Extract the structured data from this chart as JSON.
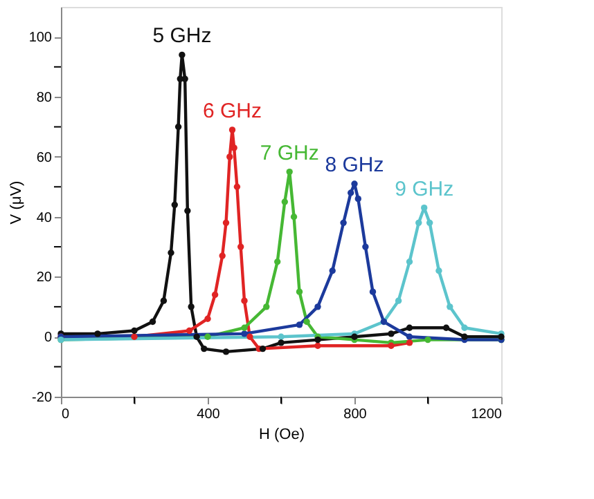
{
  "chart_data": {
    "type": "line",
    "xlabel": "H (Oe)",
    "ylabel": "V (μV)",
    "xlim": [
      0,
      1200
    ],
    "ylim": [
      -20,
      110
    ],
    "xticks": [
      0,
      {
        "value": 200,
        "label": null
      },
      400,
      {
        "value": 600,
        "label": null
      },
      800,
      {
        "value": 1000,
        "label": null
      },
      1200
    ],
    "yticks": [
      -20,
      {
        "value": -10,
        "label": null
      },
      0,
      {
        "value": 10,
        "label": null
      },
      20,
      {
        "value": 30,
        "label": null
      },
      40,
      {
        "value": 50,
        "label": null
      },
      60,
      {
        "value": 70,
        "label": null
      },
      80,
      {
        "value": 90,
        "label": null
      },
      100
    ],
    "grid": false,
    "legend": false,
    "marker": "circle",
    "line_style": "solid",
    "series": [
      {
        "name": "5 GHz",
        "color": "#111111",
        "x": [
          0,
          100,
          200,
          250,
          280,
          300,
          310,
          320,
          325,
          330,
          338,
          345,
          355,
          370,
          390,
          450,
          550,
          600,
          700,
          800,
          900,
          950,
          1050,
          1100,
          1200
        ],
        "values": [
          1,
          1,
          2,
          5,
          12,
          28,
          44,
          70,
          86,
          94,
          86,
          42,
          10,
          0,
          -4,
          -5,
          -4,
          -2,
          -1,
          0,
          1,
          3,
          3,
          0,
          0
        ]
      },
      {
        "name": "6 GHz",
        "color": "#e02424",
        "x": [
          0,
          200,
          350,
          400,
          420,
          440,
          450,
          460,
          467,
          472,
          480,
          490,
          500,
          515,
          540,
          700,
          900,
          950
        ],
        "values": [
          0,
          0,
          2,
          6,
          14,
          27,
          38,
          60,
          69,
          63,
          50,
          30,
          12,
          0,
          -4,
          -3,
          -3,
          -2
        ]
      },
      {
        "name": "7 GHz",
        "color": "#46b834",
        "x": [
          0,
          400,
          500,
          560,
          590,
          610,
          623,
          635,
          650,
          670,
          700,
          800,
          900,
          1000,
          1200
        ],
        "values": [
          -1,
          0,
          3,
          10,
          25,
          45,
          55,
          40,
          15,
          5,
          0,
          -1,
          -2,
          -1,
          -1
        ]
      },
      {
        "name": "8 GHz",
        "color": "#1c3a9c",
        "x": [
          0,
          500,
          650,
          700,
          740,
          770,
          790,
          800,
          810,
          830,
          850,
          880,
          950,
          1100,
          1200
        ],
        "values": [
          0,
          1,
          4,
          10,
          22,
          38,
          48,
          51,
          46,
          30,
          15,
          5,
          0,
          -1,
          -1
        ]
      },
      {
        "name": "9 GHz",
        "color": "#5cc4cc",
        "x": [
          0,
          600,
          800,
          880,
          920,
          950,
          975,
          990,
          1005,
          1030,
          1060,
          1100,
          1200
        ],
        "values": [
          -1,
          0,
          1,
          5,
          12,
          25,
          38,
          43,
          38,
          22,
          10,
          3,
          1
        ]
      }
    ]
  }
}
